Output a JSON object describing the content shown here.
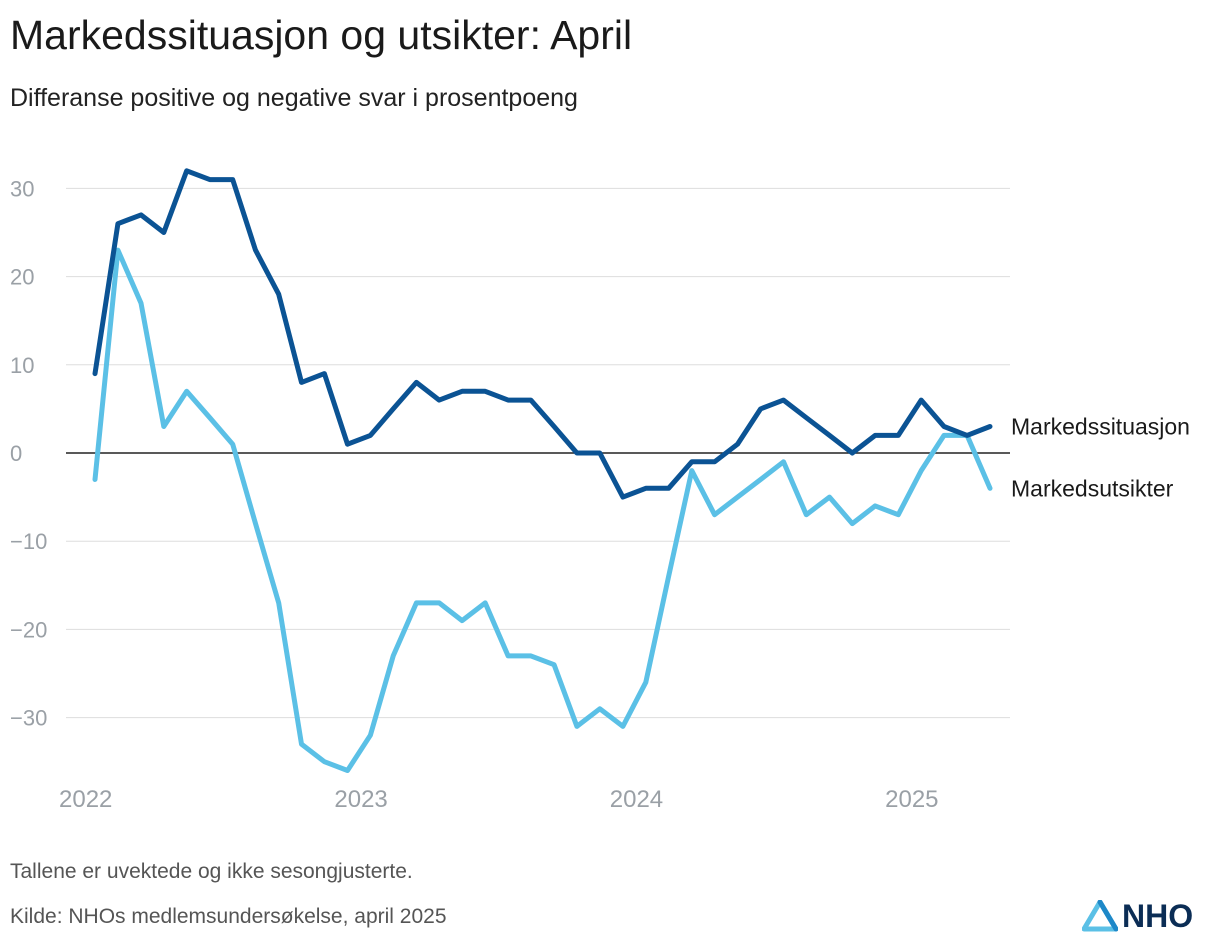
{
  "header": {
    "title": "Markedssituasjon og utsikter: April",
    "subtitle": "Differanse positive og negative svar i prosentpoeng"
  },
  "footer": {
    "note": "Tallene er uvektede og ikke sesongjusterte.",
    "source": "Kilde: NHOs medlemsundersøkelse, april 2025",
    "logo_text": "NHO"
  },
  "colors": {
    "markedssituasjon": "#0b5394",
    "markedsutsikter": "#5bc0e6",
    "grid": "#dddddd",
    "zero": "#222222"
  },
  "chart_data": {
    "type": "line",
    "title": "Markedssituasjon og utsikter: April",
    "subtitle": "Differanse positive og negative svar i prosentpoeng",
    "xlabel": "",
    "ylabel": "",
    "ylim": [
      -37,
      34
    ],
    "xlim": [
      2021.92,
      2025.38
    ],
    "yticks": [
      30,
      20,
      10,
      0,
      -10,
      -20,
      -30
    ],
    "ytick_labels": [
      "30",
      "20",
      "10",
      "0",
      "−10",
      "−20",
      "−30"
    ],
    "xticks": [
      2022,
      2023,
      2024,
      2025
    ],
    "xtick_labels": [
      "2022",
      "2023",
      "2024",
      "2025"
    ],
    "grid": true,
    "series": [
      {
        "name": "Markedssituasjon",
        "label": "Markedssituasjon",
        "color_key": "markedssituasjon",
        "points": [
          [
            2022.0,
            9
          ],
          [
            2022.083,
            26
          ],
          [
            2022.167,
            27
          ],
          [
            2022.25,
            25
          ],
          [
            2022.333,
            32
          ],
          [
            2022.417,
            31
          ],
          [
            2022.5,
            31
          ],
          [
            2022.583,
            23
          ],
          [
            2022.667,
            18
          ],
          [
            2022.75,
            8
          ],
          [
            2022.833,
            9
          ],
          [
            2022.917,
            1
          ],
          [
            2023.0,
            2
          ],
          [
            2023.083,
            5
          ],
          [
            2023.167,
            8
          ],
          [
            2023.25,
            6
          ],
          [
            2023.333,
            7
          ],
          [
            2023.417,
            7
          ],
          [
            2023.5,
            6
          ],
          [
            2023.583,
            6
          ],
          [
            2023.667,
            3
          ],
          [
            2023.75,
            0
          ],
          [
            2023.833,
            0
          ],
          [
            2023.917,
            -5
          ],
          [
            2024.0,
            -4
          ],
          [
            2024.083,
            -4
          ],
          [
            2024.167,
            -1
          ],
          [
            2024.25,
            -1
          ],
          [
            2024.333,
            1
          ],
          [
            2024.417,
            5
          ],
          [
            2024.5,
            6
          ],
          [
            2024.583,
            4
          ],
          [
            2024.667,
            2
          ],
          [
            2024.75,
            0
          ],
          [
            2024.833,
            2
          ],
          [
            2024.917,
            2
          ],
          [
            2025.0,
            6
          ],
          [
            2025.083,
            3
          ],
          [
            2025.167,
            2
          ],
          [
            2025.25,
            3
          ]
        ]
      },
      {
        "name": "Markedsutsikter",
        "label": "Markedsutsikter",
        "color_key": "markedsutsikter",
        "points": [
          [
            2022.0,
            -3
          ],
          [
            2022.083,
            23
          ],
          [
            2022.167,
            17
          ],
          [
            2022.25,
            3
          ],
          [
            2022.333,
            7
          ],
          [
            2022.417,
            4
          ],
          [
            2022.5,
            1
          ],
          [
            2022.583,
            -8
          ],
          [
            2022.667,
            -17
          ],
          [
            2022.75,
            -33
          ],
          [
            2022.833,
            -35
          ],
          [
            2022.917,
            -36
          ],
          [
            2023.0,
            -32
          ],
          [
            2023.083,
            -23
          ],
          [
            2023.167,
            -17
          ],
          [
            2023.25,
            -17
          ],
          [
            2023.333,
            -19
          ],
          [
            2023.417,
            -17
          ],
          [
            2023.5,
            -23
          ],
          [
            2023.583,
            -23
          ],
          [
            2023.667,
            -24
          ],
          [
            2023.75,
            -31
          ],
          [
            2023.833,
            -29
          ],
          [
            2023.917,
            -31
          ],
          [
            2024.0,
            -26
          ],
          [
            2024.083,
            -14
          ],
          [
            2024.167,
            -2
          ],
          [
            2024.25,
            -7
          ],
          [
            2024.333,
            -5
          ],
          [
            2024.417,
            -3
          ],
          [
            2024.5,
            -1
          ],
          [
            2024.583,
            -7
          ],
          [
            2024.667,
            -5
          ],
          [
            2024.75,
            -8
          ],
          [
            2024.833,
            -6
          ],
          [
            2024.917,
            -7
          ],
          [
            2025.0,
            -2
          ],
          [
            2025.083,
            2
          ],
          [
            2025.167,
            2
          ],
          [
            2025.25,
            -4
          ]
        ]
      }
    ]
  }
}
